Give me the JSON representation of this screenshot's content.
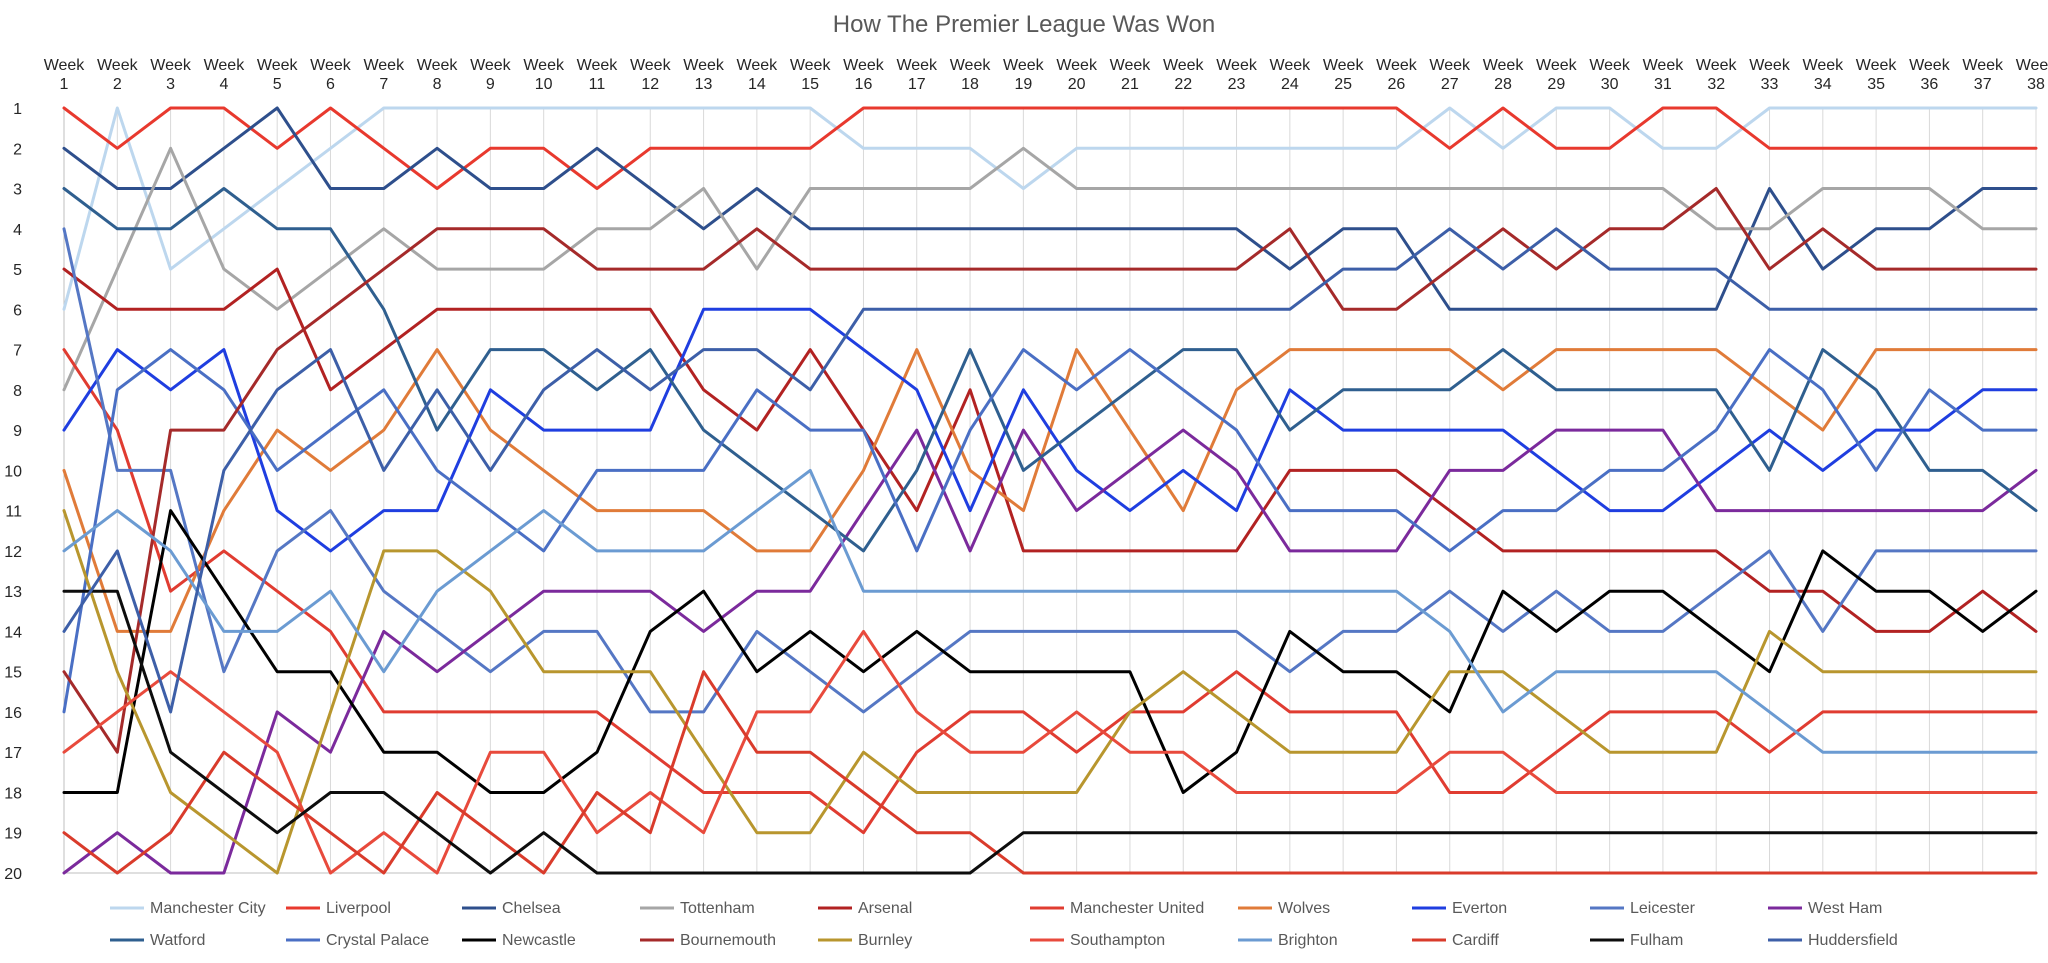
{
  "chart_data": {
    "type": "line",
    "title": "How The Premier League Was Won",
    "xlabel": "",
    "ylabel": "",
    "x_axis_position": "top",
    "y_axis_reversed": true,
    "categories": [
      "Week 1",
      "Week 2",
      "Week 3",
      "Week 4",
      "Week 5",
      "Week 6",
      "Week 7",
      "Week 8",
      "Week 9",
      "Week 10",
      "Week 11",
      "Week 12",
      "Week 13",
      "Week 14",
      "Week 15",
      "Week 16",
      "Week 17",
      "Week 18",
      "Week 19",
      "Week 20",
      "Week 21",
      "Week 22",
      "Week 23",
      "Week 24",
      "Week 25",
      "Week 26",
      "Week 27",
      "Week 28",
      "Week 29",
      "Week 30",
      "Week 31",
      "Week 32",
      "Week 33",
      "Week 34",
      "Week 35",
      "Week 36",
      "Week 37",
      "Week 38"
    ],
    "y_ticks": [
      1,
      2,
      3,
      4,
      5,
      6,
      7,
      8,
      9,
      10,
      11,
      12,
      13,
      14,
      15,
      16,
      17,
      18,
      19,
      20
    ],
    "ylim": [
      1,
      20
    ],
    "grid": "vertical",
    "legend_position": "bottom",
    "series": [
      {
        "name": "Manchester City",
        "color": "#bdd7ee",
        "values": [
          6,
          1,
          5,
          4,
          3,
          2,
          1,
          1,
          1,
          1,
          1,
          1,
          1,
          1,
          1,
          2,
          2,
          2,
          3,
          2,
          2,
          2,
          2,
          2,
          2,
          2,
          1,
          2,
          1,
          1,
          2,
          2,
          1,
          1,
          1,
          1,
          1,
          1
        ]
      },
      {
        "name": "Liverpool",
        "color": "#e8392e",
        "values": [
          1,
          2,
          1,
          1,
          2,
          1,
          2,
          3,
          2,
          2,
          3,
          2,
          2,
          2,
          2,
          1,
          1,
          1,
          1,
          1,
          1,
          1,
          1,
          1,
          1,
          1,
          2,
          1,
          2,
          2,
          1,
          1,
          2,
          2,
          2,
          2,
          2,
          2
        ]
      },
      {
        "name": "Chelsea",
        "color": "#2e4f8c",
        "values": [
          2,
          3,
          3,
          2,
          1,
          3,
          3,
          2,
          3,
          3,
          2,
          3,
          4,
          3,
          4,
          4,
          4,
          4,
          4,
          4,
          4,
          4,
          4,
          5,
          4,
          4,
          6,
          6,
          6,
          6,
          6,
          6,
          3,
          5,
          4,
          4,
          3,
          3
        ]
      },
      {
        "name": "Tottenham",
        "color": "#a6a6a6",
        "values": [
          8,
          5,
          2,
          5,
          6,
          5,
          4,
          5,
          5,
          5,
          4,
          4,
          3,
          5,
          3,
          3,
          3,
          3,
          2,
          3,
          3,
          3,
          3,
          3,
          3,
          3,
          3,
          3,
          3,
          3,
          3,
          4,
          4,
          3,
          3,
          3,
          4,
          4
        ]
      },
      {
        "name": "Arsenal",
        "color": "#b22222",
        "values": [
          5,
          6,
          6,
          6,
          5,
          8,
          7,
          6,
          6,
          6,
          6,
          6,
          8,
          9,
          7,
          9,
          11,
          8,
          12,
          12,
          12,
          12,
          12,
          10,
          10,
          10,
          11,
          12,
          12,
          12,
          12,
          12,
          13,
          13,
          14,
          14,
          13,
          14
        ]
      },
      {
        "name": "Manchester United",
        "color": "#e03c31",
        "values": [
          7,
          9,
          13,
          12,
          13,
          14,
          16,
          16,
          16,
          16,
          16,
          17,
          18,
          18,
          18,
          19,
          17,
          16,
          16,
          17,
          16,
          16,
          15,
          16,
          16,
          16,
          18,
          18,
          17,
          16,
          16,
          16,
          17,
          16,
          16,
          16,
          16,
          16
        ]
      },
      {
        "name": "Wolves",
        "color": "#e07b39",
        "values": [
          10,
          14,
          14,
          11,
          9,
          10,
          9,
          7,
          9,
          10,
          11,
          11,
          11,
          12,
          12,
          10,
          7,
          10,
          11,
          7,
          9,
          11,
          8,
          7,
          7,
          7,
          7,
          8,
          7,
          7,
          7,
          7,
          8,
          9,
          7,
          7,
          7,
          7
        ]
      },
      {
        "name": "Everton",
        "color": "#1f3ee0",
        "values": [
          9,
          7,
          8,
          7,
          11,
          12,
          11,
          11,
          8,
          9,
          9,
          9,
          6,
          6,
          6,
          7,
          8,
          11,
          8,
          10,
          11,
          10,
          11,
          8,
          9,
          9,
          9,
          9,
          10,
          11,
          11,
          10,
          9,
          10,
          9,
          9,
          8,
          8
        ]
      },
      {
        "name": "Leicester",
        "color": "#5577c4",
        "values": [
          4,
          10,
          10,
          15,
          12,
          11,
          13,
          14,
          15,
          14,
          14,
          16,
          16,
          14,
          15,
          16,
          15,
          14,
          14,
          14,
          14,
          14,
          14,
          15,
          14,
          14,
          13,
          14,
          13,
          14,
          14,
          13,
          12,
          14,
          12,
          12,
          12,
          12
        ]
      },
      {
        "name": "West Ham",
        "color": "#7b2a9c",
        "values": [
          20,
          19,
          20,
          20,
          16,
          17,
          14,
          15,
          14,
          13,
          13,
          13,
          14,
          13,
          13,
          11,
          9,
          12,
          9,
          11,
          10,
          9,
          10,
          12,
          12,
          12,
          10,
          10,
          9,
          9,
          9,
          11,
          11,
          11,
          11,
          11,
          11,
          10
        ]
      },
      {
        "name": "Watford",
        "color": "#2f5f8f",
        "values": [
          3,
          4,
          4,
          3,
          4,
          4,
          6,
          9,
          7,
          7,
          8,
          7,
          9,
          10,
          11,
          12,
          10,
          7,
          10,
          9,
          8,
          7,
          7,
          9,
          8,
          8,
          8,
          7,
          8,
          8,
          8,
          8,
          10,
          7,
          8,
          10,
          10,
          11
        ]
      },
      {
        "name": "Crystal Palace",
        "color": "#4a6fc4",
        "values": [
          16,
          8,
          7,
          8,
          10,
          9,
          8,
          10,
          11,
          12,
          10,
          10,
          10,
          8,
          9,
          9,
          12,
          9,
          7,
          8,
          7,
          8,
          9,
          11,
          11,
          11,
          12,
          11,
          11,
          10,
          10,
          9,
          7,
          8,
          10,
          8,
          9,
          9
        ]
      },
      {
        "name": "Newcastle",
        "color": "#000000",
        "values": [
          18,
          18,
          11,
          13,
          15,
          15,
          17,
          17,
          18,
          18,
          17,
          14,
          13,
          15,
          14,
          15,
          14,
          15,
          15,
          15,
          15,
          18,
          17,
          14,
          15,
          15,
          16,
          13,
          14,
          13,
          13,
          14,
          15,
          12,
          13,
          13,
          14,
          13
        ]
      },
      {
        "name": "Bournemouth",
        "color": "#a52a2a",
        "values": [
          15,
          17,
          9,
          9,
          7,
          6,
          5,
          4,
          4,
          4,
          5,
          5,
          5,
          4,
          5,
          5,
          5,
          5,
          5,
          5,
          5,
          5,
          5,
          4,
          6,
          6,
          5,
          4,
          5,
          4,
          4,
          3,
          5,
          4,
          5,
          5,
          5,
          5
        ]
      },
      {
        "name": "Burnley",
        "color": "#b8962e",
        "values": [
          11,
          15,
          18,
          19,
          20,
          16,
          12,
          12,
          13,
          15,
          15,
          15,
          17,
          19,
          19,
          17,
          18,
          18,
          18,
          18,
          16,
          15,
          16,
          17,
          17,
          17,
          15,
          15,
          16,
          17,
          17,
          17,
          14,
          15,
          15,
          15,
          15,
          15
        ]
      },
      {
        "name": "Southampton",
        "color": "#e84a3c",
        "values": [
          17,
          16,
          15,
          16,
          17,
          20,
          19,
          20,
          17,
          17,
          19,
          18,
          19,
          16,
          16,
          14,
          16,
          17,
          17,
          16,
          17,
          17,
          18,
          18,
          18,
          18,
          17,
          17,
          18,
          18,
          18,
          18,
          18,
          18,
          18,
          18,
          18,
          18
        ]
      },
      {
        "name": "Brighton",
        "color": "#6b9bd2",
        "values": [
          12,
          11,
          12,
          14,
          14,
          13,
          15,
          13,
          12,
          11,
          12,
          12,
          12,
          11,
          10,
          13,
          13,
          13,
          13,
          13,
          13,
          13,
          13,
          13,
          13,
          13,
          14,
          16,
          15,
          15,
          15,
          15,
          16,
          17,
          17,
          17,
          17,
          17
        ]
      },
      {
        "name": "Cardiff",
        "color": "#d93b2b",
        "values": [
          19,
          20,
          19,
          17,
          18,
          19,
          20,
          18,
          19,
          20,
          18,
          19,
          15,
          17,
          17,
          18,
          19,
          19,
          20,
          20,
          20,
          20,
          20,
          20,
          20,
          20,
          20,
          20,
          20,
          20,
          20,
          20,
          20,
          20,
          20,
          20,
          20,
          20
        ]
      },
      {
        "name": "Fulham",
        "color": "#0d0d0d",
        "values": [
          13,
          13,
          17,
          18,
          19,
          18,
          18,
          19,
          20,
          19,
          20,
          20,
          20,
          20,
          20,
          20,
          20,
          20,
          19,
          19,
          19,
          19,
          19,
          19,
          19,
          19,
          19,
          19,
          19,
          19,
          19,
          19,
          19,
          19,
          19,
          19,
          19,
          19
        ]
      },
      {
        "name": "Huddersfield",
        "color": "#3d5fa8",
        "values": [
          14,
          12,
          16,
          10,
          8,
          7,
          10,
          8,
          10,
          8,
          7,
          8,
          7,
          7,
          8,
          6,
          6,
          6,
          6,
          6,
          6,
          6,
          6,
          6,
          5,
          5,
          4,
          5,
          4,
          5,
          5,
          5,
          6,
          6,
          6,
          6,
          6,
          6
        ]
      }
    ]
  }
}
